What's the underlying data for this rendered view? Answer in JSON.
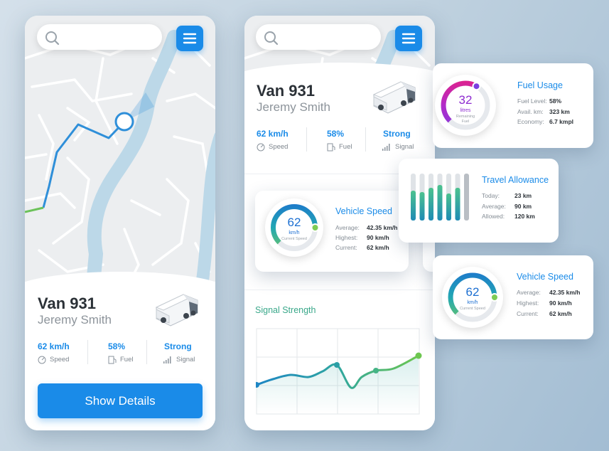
{
  "map_screen": {
    "vehicle": {
      "name": "Van 931",
      "driver": "Jeremy Smith",
      "stats": [
        {
          "value": "62 km/h",
          "label": "Speed"
        },
        {
          "value": "58%",
          "label": "Fuel"
        },
        {
          "value": "Strong",
          "label": "Signal"
        }
      ]
    },
    "button": "Show Details"
  },
  "detail_screen": {
    "vehicle": {
      "name": "Van 931",
      "driver": "Jeremy Smith",
      "stats": [
        {
          "value": "62 km/h",
          "label": "Speed"
        },
        {
          "value": "58%",
          "label": "Fuel"
        },
        {
          "value": "Strong",
          "label": "Signal"
        }
      ]
    },
    "speed_card": {
      "gauge": {
        "value": 62,
        "unit": "km/h",
        "caption": "Current Speed"
      },
      "title": "Vehicle Speed",
      "rows": [
        {
          "label": "Average:",
          "value": "42.35 km/h"
        },
        {
          "label": "Highest:",
          "value": "90 km/h"
        },
        {
          "label": "Current:",
          "value": "62 km/h"
        }
      ]
    },
    "chart_title": "Signal Strength"
  },
  "fuel_card": {
    "gauge": {
      "value": 32,
      "unit": "litres",
      "caption": "Remaining Fuel"
    },
    "title": "Fuel Usage",
    "rows": [
      {
        "label": "Fuel Level:",
        "value": "58%"
      },
      {
        "label": "Avail. km:",
        "value": "323 km"
      },
      {
        "label": "Economy:",
        "value": "6.7 kmpl"
      }
    ]
  },
  "travel_card": {
    "title": "Travel Allowance",
    "rows": [
      {
        "label": "Today:",
        "value": "23 km"
      },
      {
        "label": "Average:",
        "value": "90 km"
      },
      {
        "label": "Allowed:",
        "value": "120 km"
      }
    ]
  },
  "speed_card": {
    "gauge": {
      "value": 62,
      "unit": "km/h",
      "caption": "Current Speed"
    },
    "title": "Vehicle Speed",
    "rows": [
      {
        "label": "Average:",
        "value": "42.35 km/h"
      },
      {
        "label": "Highest:",
        "value": "90 km/h"
      },
      {
        "label": "Current:",
        "value": "62 km/h"
      }
    ]
  }
}
